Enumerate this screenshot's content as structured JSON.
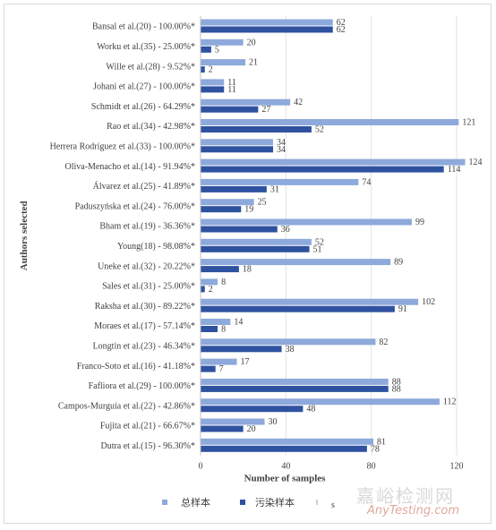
{
  "chart_data": {
    "type": "bar",
    "orientation": "horizontal",
    "categories": [
      "Bansal et al.(20) - 100.00%*",
      "Worku et al.(35) - 25.00%*",
      "Wille et al.(28) - 9.52%*",
      "Johani et al.(27) - 100.00%*",
      "Schmidt et al.(26) - 64.29%*",
      "Rao et al.(34) - 42.98%*",
      "Herrera Rodríguez et al.(33) - 100.00%*",
      "Oliva-Menacho et al.(14) - 91.94%*",
      "Álvarez et al.(25) - 41.89%*",
      "Paduszyńska et al.(24) - 76.00%*",
      "Bham et al.(19) - 36.36%*",
      "Young(18) - 98.08%*",
      "Uneke et al.(32) - 20.22%*",
      "Sales et al.(31) - 25.00%*",
      "Raksha et al.(30) - 89.22%*",
      "Moraes et al.(17) - 57.14%*",
      "Longtin et al.(23) - 46.34%*",
      "Franco-Soto et al.(16) - 41.18%*",
      "Fafliora et al.(29) - 100.00%*",
      "Campos-Murguía et al.(22) - 42.86%*",
      "Fujita et al.(21) - 66.67%*",
      "Dutra et al.(15) - 96.30%*"
    ],
    "series": [
      {
        "name": "总样本",
        "color": "#8ea9db",
        "values": [
          62,
          20,
          21,
          11,
          42,
          121,
          34,
          124,
          74,
          25,
          99,
          52,
          89,
          8,
          102,
          14,
          82,
          17,
          88,
          112,
          30,
          81
        ]
      },
      {
        "name": "污染样本",
        "color": "#2f52a0",
        "values": [
          62,
          5,
          2,
          11,
          27,
          52,
          34,
          114,
          31,
          19,
          36,
          51,
          18,
          2,
          91,
          8,
          38,
          7,
          88,
          48,
          20,
          78
        ]
      }
    ],
    "xticks": [
      "0",
      "40",
      "80",
      "120"
    ],
    "xlim": [
      0,
      135
    ],
    "xlabel": "Number of samples",
    "ylabel": "Authors selected",
    "grid": true,
    "legend_position": "bottom",
    "legend_extra": "s"
  },
  "watermark": {
    "line1": "嘉峪检测网",
    "line2": "AnyTesting.com"
  }
}
